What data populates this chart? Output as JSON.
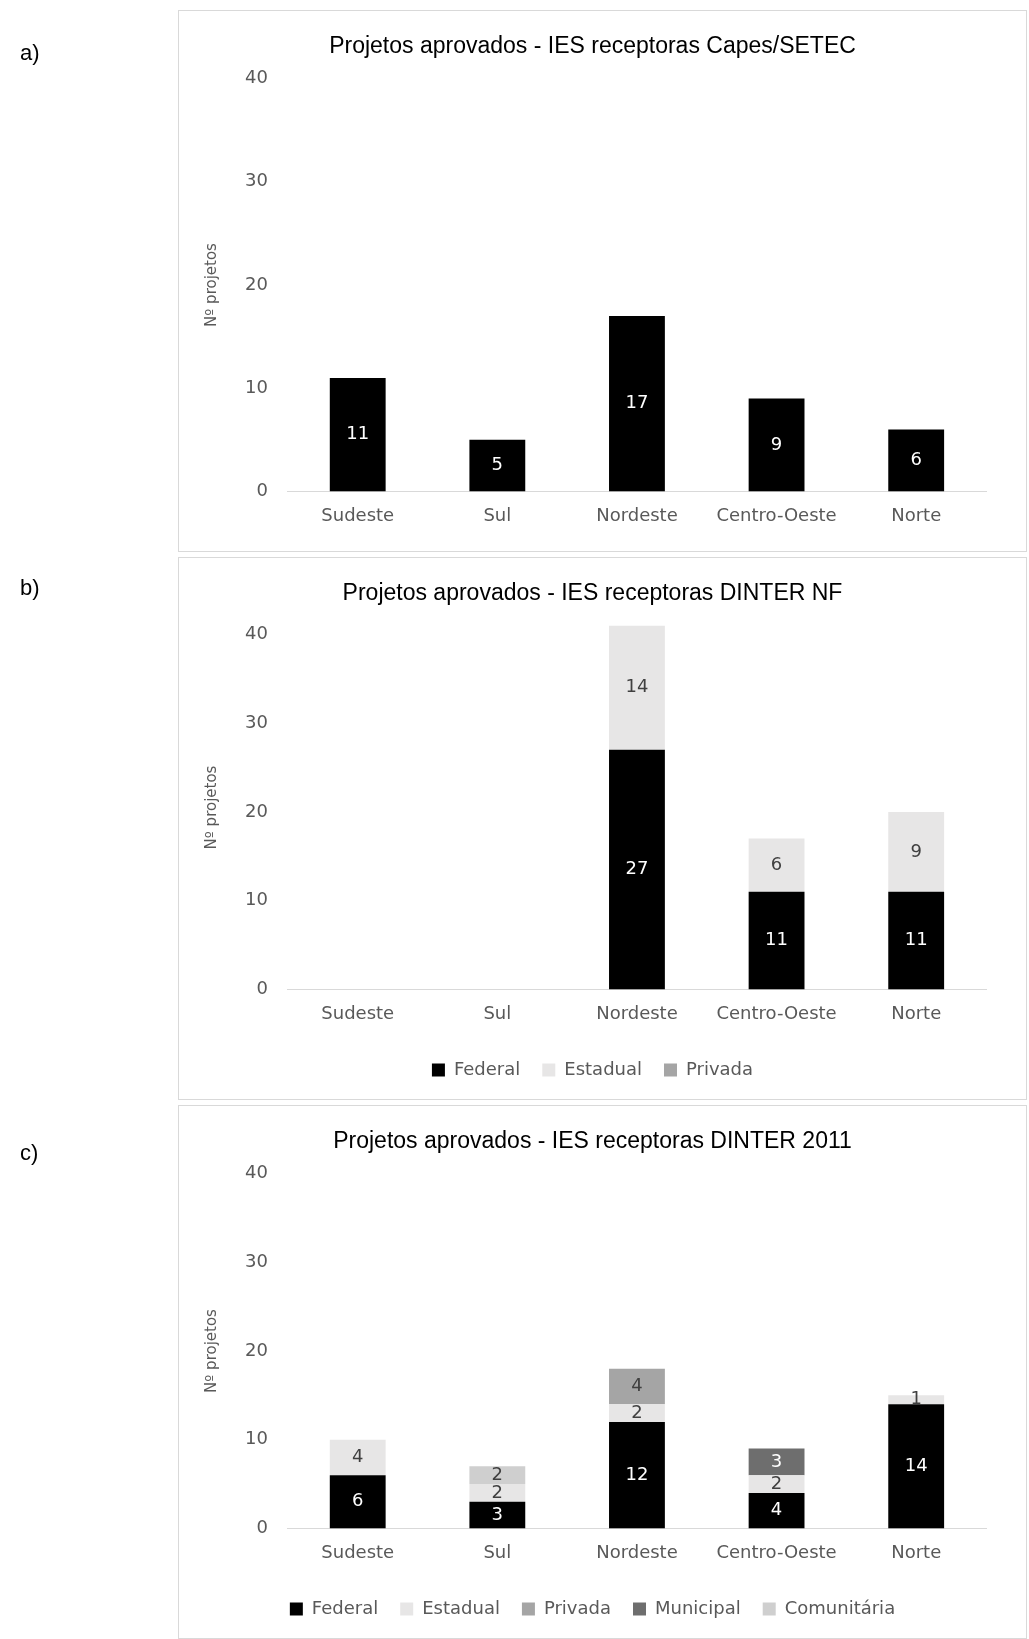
{
  "chart_data": [
    {
      "type": "bar",
      "title": "Projetos aprovados - IES receptoras Capes/SETEC",
      "ylabel": "Nº projetos",
      "annotations": [
        "a)"
      ],
      "categories": [
        "Sudeste",
        "Sul",
        "Nordeste",
        "Centro-Oeste",
        "Norte"
      ],
      "values": [
        11,
        5,
        17,
        9,
        6
      ],
      "color": "#000000",
      "ylim": [
        0,
        40
      ],
      "yticks": [
        0,
        10,
        20,
        30,
        40
      ],
      "grid": false,
      "legend": false,
      "data_labels": true
    },
    {
      "type": "bar",
      "title": "Projetos aprovados - IES receptoras DINTER NF",
      "ylabel": "Nº projetos",
      "annotations": [
        "b)"
      ],
      "categories": [
        "Sudeste",
        "Sul",
        "Nordeste",
        "Centro-Oeste",
        "Norte"
      ],
      "stacked": true,
      "series": [
        {
          "name": "Federal",
          "color": "#000000",
          "values": [
            null,
            null,
            27,
            11,
            11
          ]
        },
        {
          "name": "Estadual",
          "color": "#e7e6e6",
          "values": [
            null,
            null,
            14,
            6,
            9
          ]
        },
        {
          "name": "Privada",
          "color": "#a5a5a5",
          "values": [
            null,
            null,
            null,
            null,
            null
          ]
        }
      ],
      "ylim": [
        0,
        41
      ],
      "yticks": [
        0,
        10,
        20,
        30,
        40
      ],
      "grid": false,
      "legend": "bottom",
      "data_labels": true
    },
    {
      "type": "bar",
      "title": "Projetos aprovados - IES receptoras DINTER 2011",
      "ylabel": "Nº projetos",
      "annotations": [
        "c)"
      ],
      "categories": [
        "Sudeste",
        "Sul",
        "Nordeste",
        "Centro-Oeste",
        "Norte"
      ],
      "stacked": true,
      "series": [
        {
          "name": "Federal",
          "color": "#000000",
          "values": [
            6,
            3,
            12,
            4,
            14
          ]
        },
        {
          "name": "Estadual",
          "color": "#e7e6e6",
          "values": [
            4,
            2,
            2,
            2,
            1
          ]
        },
        {
          "name": "Privada",
          "color": "#a5a5a5",
          "values": [
            null,
            null,
            4,
            null,
            null
          ]
        },
        {
          "name": "Municipal",
          "color": "#6e6e6e",
          "values": [
            null,
            null,
            null,
            3,
            null
          ]
        },
        {
          "name": "Comunitária",
          "color": "#cfcfcf",
          "values": [
            null,
            2,
            null,
            null,
            null
          ]
        }
      ],
      "ylim": [
        0,
        40
      ],
      "yticks": [
        0,
        10,
        20,
        30,
        40
      ],
      "grid": false,
      "legend": "bottom",
      "data_labels": true
    }
  ]
}
